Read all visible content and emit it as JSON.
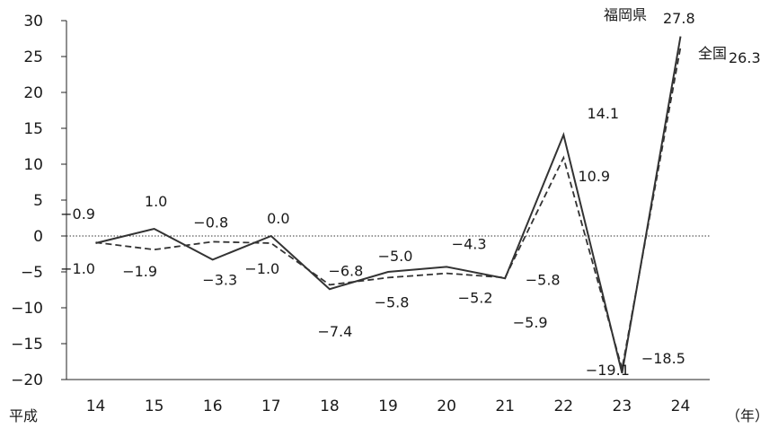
{
  "chart_data": {
    "type": "line",
    "categories": [
      "14",
      "15",
      "16",
      "17",
      "18",
      "19",
      "20",
      "21",
      "22",
      "23",
      "24"
    ],
    "series": [
      {
        "name": "福岡県",
        "style": "solid",
        "color": "#333333",
        "values": [
          -1.0,
          1.0,
          -3.3,
          0.0,
          -7.4,
          -5.0,
          -4.3,
          -5.9,
          14.1,
          -19.1,
          27.8
        ]
      },
      {
        "name": "全国",
        "style": "dashed",
        "color": "#333333",
        "values": [
          -0.9,
          -1.9,
          -0.8,
          -1.0,
          -6.8,
          -5.8,
          -5.2,
          -5.8,
          10.9,
          -18.5,
          26.3
        ]
      }
    ],
    "data_labels": [
      "-0.9",
      "-1.0",
      "1.0",
      "-1.9",
      "-0.8",
      "-3.3",
      "0.0",
      "-1.0",
      "-6.8",
      "-7.4",
      "-5.0",
      "-5.8",
      "-4.3",
      "-5.2",
      "-5.8",
      "-5.9",
      "14.1",
      "10.9",
      "-19.1",
      "-18.5"
    ],
    "series_end_labels": {
      "pref": "27.8",
      "national": "26.3"
    },
    "y_ticks": [
      "30",
      "25",
      "20",
      "15",
      "10",
      "5",
      "0",
      "-5",
      "-10",
      "-15",
      "-20"
    ],
    "ylim": [
      -20,
      30
    ],
    "zero_line": "dotted",
    "x_prefix": "平成",
    "x_unit": "（年）",
    "title": "",
    "xlabel": "",
    "ylabel": ""
  }
}
